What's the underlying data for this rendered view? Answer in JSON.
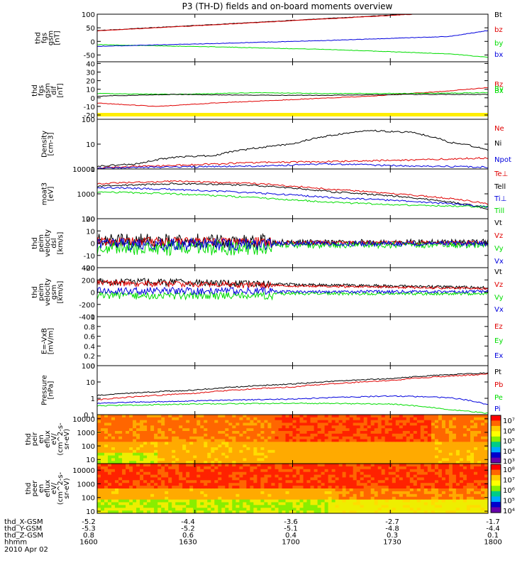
{
  "title": "P3 (TH-D) fields and on-board moments overview",
  "colors": {
    "black": "#000000",
    "red": "#e00000",
    "green": "#00dd00",
    "blue": "#0000dd",
    "yellow": "#ffee00"
  },
  "chart_data": [
    {
      "type": "line",
      "panel": "fgs_gsm",
      "ylabel": [
        "thd",
        "fgs",
        "gsm",
        "[nT]"
      ],
      "ylim": [
        -75,
        100
      ],
      "yticks": [
        100,
        50,
        0,
        -50
      ],
      "legend": [
        "Bt",
        "bz",
        "by",
        "bx"
      ],
      "series": [
        {
          "name": "Bt",
          "color": "black",
          "x": [
            0,
            30,
            60,
            90,
            100
          ],
          "values": [
            40,
            62,
            85,
            108,
            116
          ]
        },
        {
          "name": "bz",
          "color": "red",
          "x": [
            0,
            30,
            60,
            90,
            100
          ],
          "values": [
            39,
            61,
            84,
            107,
            115
          ]
        },
        {
          "name": "by",
          "color": "green",
          "x": [
            0,
            30,
            60,
            90,
            100
          ],
          "values": [
            -12,
            -20,
            -30,
            -46,
            -58
          ]
        },
        {
          "name": "bx",
          "color": "blue",
          "x": [
            0,
            30,
            60,
            90,
            100
          ],
          "values": [
            -18,
            -8,
            4,
            18,
            40
          ]
        }
      ]
    },
    {
      "type": "line",
      "panel": "fgs_gsm_dif",
      "ylabel": [
        "thd",
        "fgs",
        "gsm",
        "dif",
        "[nT]"
      ],
      "ylim": [
        -25,
        42
      ],
      "yticks": [
        40,
        30,
        20,
        10,
        0,
        -10,
        -20
      ],
      "legend": [
        "Bz",
        "By",
        "Bx"
      ],
      "series": [
        {
          "name": "Bz",
          "color": "red",
          "x": [
            0,
            15,
            30,
            50,
            70,
            90,
            100
          ],
          "values": [
            -6,
            -10,
            -6,
            -2,
            2,
            8,
            12
          ]
        },
        {
          "name": "By",
          "color": "green",
          "x": [
            0,
            20,
            40,
            60,
            80,
            100
          ],
          "values": [
            5,
            4,
            6,
            5,
            5,
            6
          ]
        },
        {
          "name": "Bx",
          "color": "black",
          "x": [
            0,
            20,
            40,
            60,
            80,
            100
          ],
          "values": [
            2,
            4,
            3,
            3,
            4,
            4
          ]
        }
      ]
    },
    {
      "type": "line",
      "panel": "density",
      "ylabel": [
        "Density",
        "[cm-3]"
      ],
      "scale": "log",
      "ylim": [
        1,
        100
      ],
      "yticks": [
        100,
        10,
        1
      ],
      "legend": [
        "Ne",
        "Ni",
        "Npot"
      ],
      "series": [
        {
          "name": "Ni",
          "color": "black",
          "x": [
            0,
            10,
            20,
            30,
            50,
            70,
            80,
            90,
            100
          ],
          "values": [
            1.3,
            1.6,
            3,
            3.5,
            10,
            35,
            30,
            12,
            6
          ]
        },
        {
          "name": "Ne",
          "color": "red",
          "x": [
            0,
            20,
            40,
            60,
            80,
            100
          ],
          "values": [
            1.1,
            1.4,
            1.8,
            2,
            2.3,
            2.8
          ]
        },
        {
          "name": "Npot",
          "color": "blue",
          "x": [
            0,
            20,
            40,
            60,
            80,
            100
          ],
          "values": [
            1.1,
            1.2,
            1.3,
            1.6,
            1.3,
            1.2
          ]
        }
      ]
    },
    {
      "type": "line",
      "panel": "temperature",
      "ylabel": [
        "moat3",
        "[eV]"
      ],
      "scale": "log",
      "ylim": [
        100,
        10000
      ],
      "yticks": [
        10000,
        1000,
        100
      ],
      "legend": [
        "Te⊥",
        "Tell",
        "Ti⊥",
        "Till"
      ],
      "series": [
        {
          "name": "Te⊥",
          "color": "red",
          "x": [
            0,
            20,
            40,
            60,
            80,
            100
          ],
          "values": [
            2600,
            3200,
            2600,
            1500,
            900,
            400
          ]
        },
        {
          "name": "Tell",
          "color": "black",
          "x": [
            0,
            20,
            40,
            60,
            80,
            100
          ],
          "values": [
            2000,
            2600,
            2200,
            1200,
            700,
            250
          ]
        },
        {
          "name": "Ti⊥",
          "color": "blue",
          "x": [
            0,
            20,
            40,
            60,
            80,
            100
          ],
          "values": [
            1800,
            1500,
            1100,
            700,
            500,
            300
          ]
        },
        {
          "name": "Till",
          "color": "green",
          "x": [
            0,
            20,
            40,
            60,
            80,
            100
          ],
          "values": [
            1200,
            1000,
            700,
            450,
            350,
            300
          ]
        }
      ]
    },
    {
      "type": "line",
      "panel": "velocity_dsl",
      "ylabel": [
        "thd",
        "peim",
        "velocity",
        "dsl",
        "[km/s]"
      ],
      "ylim": [
        -20,
        20
      ],
      "yticks": [
        20,
        10,
        0,
        -10,
        -20
      ],
      "legend": [
        "Vt",
        "Vz",
        "Vy",
        "Vx"
      ]
    },
    {
      "type": "line",
      "panel": "velocity_gsm",
      "ylabel": [
        "thd",
        "peim",
        "velocity",
        "gsm",
        "[km/s]"
      ],
      "ylim": [
        -400,
        400
      ],
      "yticks": [
        400,
        200,
        0,
        -200,
        -400
      ],
      "legend": [
        "Vt",
        "Vz",
        "Vy",
        "Vx"
      ]
    },
    {
      "type": "line",
      "panel": "efield",
      "ylabel": [
        "E=-VxB",
        "[mV/m]"
      ],
      "ylim": [
        0,
        1
      ],
      "yticks": [
        1.0,
        0.8,
        0.6,
        0.4,
        0.2,
        0.0
      ],
      "legend": [
        "Ez",
        "Ey",
        "Ex"
      ],
      "series": []
    },
    {
      "type": "line",
      "panel": "pressure",
      "ylabel": [
        "Pressure",
        "[nPa]"
      ],
      "scale": "log",
      "ylim": [
        0.1,
        100
      ],
      "yticks": [
        100.0,
        10.0,
        1.0,
        0.1
      ],
      "legend": [
        "Pt",
        "Pb",
        "Pe",
        "Pi"
      ],
      "series": [
        {
          "name": "Pt",
          "color": "black",
          "x": [
            0,
            25,
            50,
            75,
            100
          ],
          "values": [
            1.5,
            3.2,
            7.5,
            16,
            36
          ]
        },
        {
          "name": "Pb",
          "color": "red",
          "x": [
            0,
            25,
            50,
            75,
            100
          ],
          "values": [
            0.8,
            2,
            5,
            12,
            30
          ]
        },
        {
          "name": "Pe",
          "color": "green",
          "x": [
            0,
            25,
            50,
            75,
            90,
            100
          ],
          "values": [
            0.35,
            0.45,
            0.5,
            0.45,
            0.2,
            0.12
          ]
        },
        {
          "name": "Pi",
          "color": "blue",
          "x": [
            0,
            25,
            50,
            75,
            90,
            100
          ],
          "values": [
            0.5,
            0.7,
            0.9,
            1.4,
            1.1,
            0.4
          ]
        }
      ]
    },
    {
      "type": "heatmap",
      "panel": "peir_en_eflux",
      "ylabel": [
        "thd",
        "peir",
        "en",
        "eflux",
        "eV/",
        "(cm^2-s-",
        "sr-eV)"
      ],
      "scale": "log",
      "ylim": [
        5,
        20000
      ],
      "yticks": [
        10000,
        1000,
        100,
        10
      ],
      "colorbar": {
        "ticks": [
          "10⁷",
          "10⁶",
          "10⁵",
          "10⁴",
          "10³"
        ],
        "range": [
          100,
          10000000
        ]
      }
    },
    {
      "type": "heatmap",
      "panel": "peer_en_eflux",
      "ylabel": [
        "thd",
        "peer",
        "en",
        "eflux",
        "eV/",
        "(cm^2-s-",
        "sr-eV)"
      ],
      "scale": "log",
      "ylim": [
        7,
        30000
      ],
      "yticks": [
        10000,
        1000,
        100,
        10
      ],
      "colorbar": {
        "ticks": [
          "10⁸",
          "10⁷",
          "10⁶",
          "10⁵",
          "10⁴"
        ],
        "range": [
          4000,
          300000000
        ]
      }
    }
  ],
  "xaxis": {
    "rows": [
      {
        "label": "thd_X-GSM",
        "values": [
          "-5.2",
          "-4.4",
          "-3.6",
          "-2.7",
          "-1.7"
        ]
      },
      {
        "label": "thd_Y-GSM",
        "values": [
          "-5.3",
          "-5.2",
          "-5.1",
          "-4.8",
          "-4.4"
        ]
      },
      {
        "label": "thd_Z-GSM",
        "values": [
          "0.8",
          "0.6",
          "0.4",
          "0.3",
          "0.1"
        ]
      },
      {
        "label": "hhmm",
        "values": [
          "1600",
          "1630",
          "1700",
          "1730",
          "1800"
        ]
      }
    ],
    "date": "2010 Apr 02"
  }
}
